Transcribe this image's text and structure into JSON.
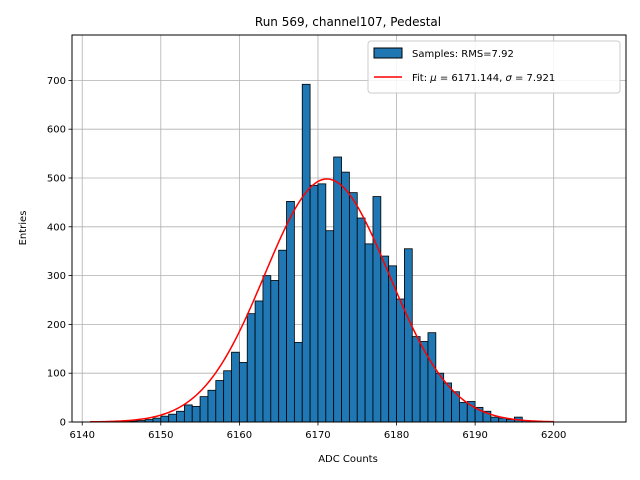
{
  "chart_data": {
    "type": "bar",
    "title": "Run 569, channel107, Pedestal",
    "xlabel": "ADC Counts",
    "ylabel": "Entries",
    "xlim": [
      6138.7,
      6209.2
    ],
    "ylim": [
      0,
      793
    ],
    "xticks": [
      6140,
      6150,
      6160,
      6170,
      6180,
      6190,
      6200
    ],
    "yticks": [
      0,
      100,
      200,
      300,
      400,
      500,
      600,
      700
    ],
    "grid": true,
    "legend_position": "top-right",
    "histogram": {
      "name": "Samples: RMS=7.92",
      "color": "#1f77b4",
      "edgecolor": "#000000",
      "bin_start": 6141.0,
      "bin_width": 1.0,
      "values": [
        0,
        0,
        0,
        0,
        1,
        2,
        3,
        5,
        8,
        12,
        16,
        22,
        35,
        32,
        52,
        65,
        85,
        105,
        143,
        122,
        222,
        248,
        300,
        290,
        352,
        452,
        163,
        692,
        485,
        488,
        392,
        543,
        512,
        470,
        418,
        365,
        462,
        340,
        320,
        252,
        355,
        175,
        165,
        183,
        100,
        80,
        62,
        40,
        42,
        30,
        22,
        10,
        8,
        5,
        10,
        3,
        1,
        0,
        0,
        0
      ]
    },
    "fit": {
      "name_prefix": "Fit: ",
      "mu_symbol": "μ",
      "mu_text": " = 6171.144, ",
      "sigma_symbol": "σ",
      "sigma_text": " = 7.921",
      "color": "#ff0000",
      "mu": 6171.144,
      "sigma": 7.921,
      "amplitude": 498,
      "x_range": [
        6141,
        6200
      ]
    }
  }
}
